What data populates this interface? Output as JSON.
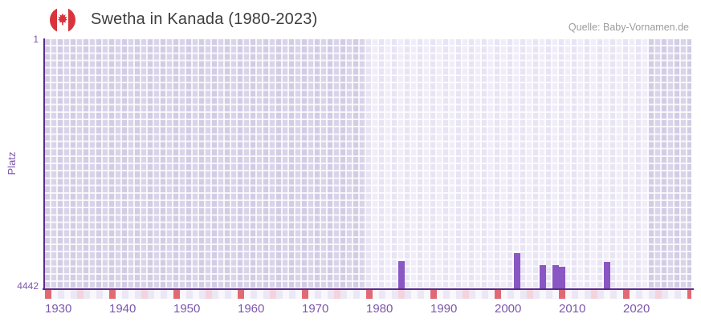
{
  "header": {
    "title": "Swetha in Kanada (1980-2023)",
    "source": "Quelle: Baby-Vornamen.de"
  },
  "chart_data": {
    "type": "bar",
    "title": "Swetha in Kanada (1980-2023)",
    "ylabel": "Platz",
    "y_axis": {
      "top_tick_label": "1",
      "bottom_tick_label": "4442",
      "min": 1,
      "max": 4442,
      "inverted": true
    },
    "x_axis": {
      "start_year": 1930,
      "end_year": 2030,
      "tick_years": [
        1930,
        1940,
        1950,
        1960,
        1970,
        1980,
        1990,
        2000,
        2010,
        2020
      ]
    },
    "highlight_period": {
      "from": 1980,
      "to": 2023
    },
    "points": [
      {
        "year": 1985,
        "rank": 3945
      },
      {
        "year": 2003,
        "rank": 3800
      },
      {
        "year": 2007,
        "rank": 4020
      },
      {
        "year": 2009,
        "rank": 4020
      },
      {
        "year": 2010,
        "rank": 4040
      },
      {
        "year": 2017,
        "rank": 3955
      }
    ],
    "rank_note": "ranks estimated from bar heights; axis shows Platz 1 (top) to 4442 (bottom)",
    "ruler_marks": {
      "red_every_10_from": 1930,
      "pink_every_10_from": 1935
    },
    "legend": "none",
    "grid": true
  },
  "colors": {
    "bar": "#8a56c3",
    "axis_line": "#5a2b8c",
    "axis_label": "#7c56ac",
    "zone_outside": "#d9d4e9",
    "zone_inside": "#f0edf9",
    "ruler_red": "#e06a74",
    "ruler_pink": "#f5d3dd",
    "ruler_even": "#ece7f5",
    "ruler_odd": "#f8f7fc",
    "flag_red": "#d7343b",
    "title_text": "#3d3d3d",
    "source_text": "#9c9c9c"
  }
}
